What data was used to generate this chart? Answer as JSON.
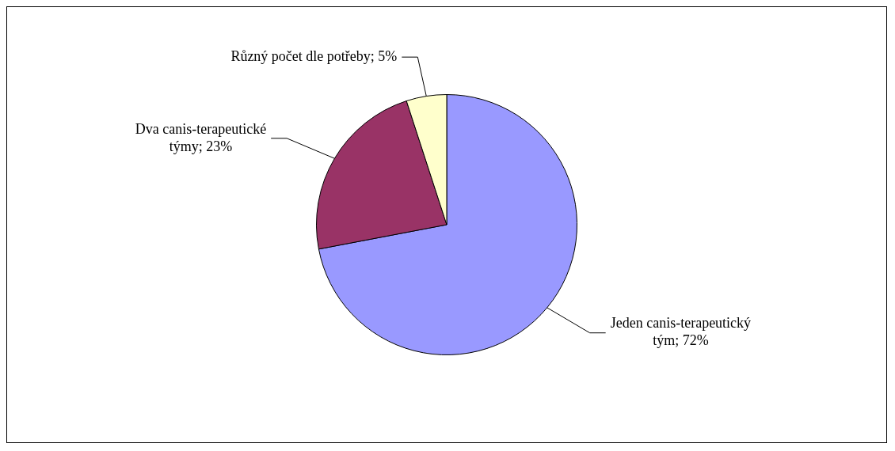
{
  "chart_data": {
    "type": "pie",
    "categories": [
      "Jeden canis-terapeutický tým",
      "Dva canis-terapeutické týmy",
      "Různý počet dle potřeby"
    ],
    "values": [
      72,
      23,
      5
    ],
    "colors": [
      "#9999ff",
      "#993366",
      "#ffffcc"
    ],
    "value_labels": [
      "72%",
      "23%",
      "5%"
    ],
    "legend": false
  }
}
